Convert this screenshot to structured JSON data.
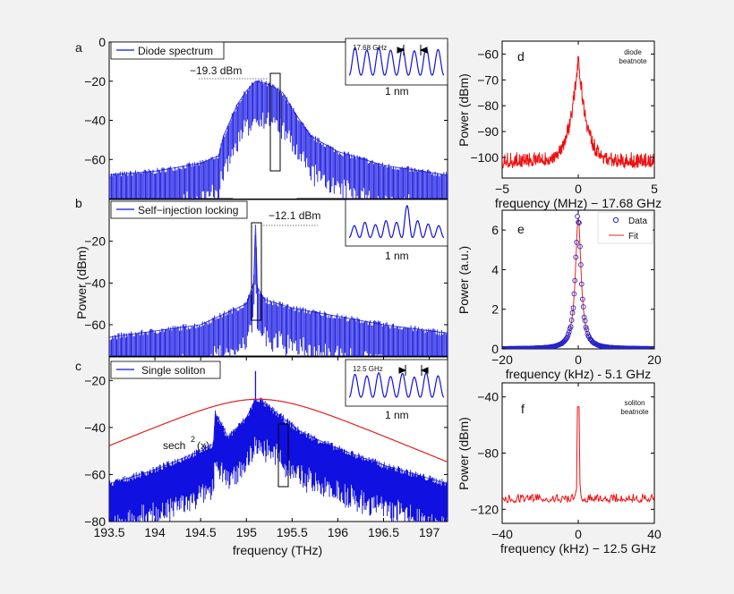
{
  "figure": {
    "shared_ylabel": "Power (dBm)",
    "shared_xlabel": "frequency (THz)"
  },
  "chart_data": [
    {
      "id": "a",
      "type": "line",
      "panel_label": "a",
      "legend": "Diode spectrum",
      "xlim": [
        193.5,
        197.2
      ],
      "ylim": [
        -80,
        0
      ],
      "yticks": [
        0,
        -20,
        -40,
        -60
      ],
      "annotation": "−19.3 dBm",
      "series": [
        {
          "name": "Diode spectrum",
          "color": "#1010e0",
          "envelope_x": [
            193.5,
            194.0,
            194.5,
            194.7,
            194.75,
            194.9,
            195.0,
            195.1,
            195.2,
            195.3,
            195.4,
            195.5,
            195.7,
            196.0,
            196.5,
            197.2
          ],
          "envelope_y": [
            -68,
            -66,
            -62,
            -58,
            -48,
            -32,
            -25,
            -20,
            -21,
            -23,
            -26,
            -34,
            -48,
            -56,
            -63,
            -68
          ],
          "floor_y": -80
        }
      ],
      "inset": {
        "label": "1 nm",
        "spacing_label": "17.68 GHz",
        "peaks": [
          0.9,
          0.82,
          0.9,
          0.82,
          0.88,
          0.8,
          0.9,
          0.84
        ],
        "marker_after": 5
      }
    },
    {
      "id": "b",
      "type": "line",
      "panel_label": "b",
      "legend": "Self−injection locking",
      "xlim": [
        193.5,
        197.2
      ],
      "ylim": [
        -75,
        0
      ],
      "yticks": [
        -20,
        -40,
        -60
      ],
      "annotation": "−12.1 dBm",
      "series": [
        {
          "name": "Self-injection locking",
          "color": "#1010e0",
          "envelope_x": [
            193.5,
            194.0,
            194.5,
            195.0,
            195.08,
            195.1,
            195.12,
            195.2,
            195.5,
            196.0,
            196.5,
            197.2
          ],
          "envelope_y": [
            -66,
            -63,
            -60,
            -50,
            -40,
            -12.1,
            -42,
            -48,
            -52,
            -56,
            -60,
            -64
          ],
          "floor_y": -75
        }
      ],
      "inset": {
        "label": "1 nm",
        "peaks": [
          0.35,
          0.45,
          0.38,
          0.5,
          0.45,
          0.95,
          0.5,
          0.4,
          0.35
        ]
      }
    },
    {
      "id": "c",
      "type": "line",
      "panel_label": "c",
      "legend": "Single soliton",
      "xlim": [
        193.5,
        197.2
      ],
      "ylim": [
        -80,
        -10
      ],
      "xticks": [
        193.5,
        194,
        194.5,
        195,
        195.5,
        196,
        196.5,
        197
      ],
      "yticks": [
        -20,
        -40,
        -60,
        -80
      ],
      "annotation_base": "sech",
      "annotation_sup": "2",
      "annotation_tail": "(x)",
      "series": [
        {
          "name": "Single soliton",
          "color": "#1010e0",
          "envelope_x": [
            193.5,
            194.0,
            194.5,
            194.64,
            194.66,
            194.8,
            195.0,
            195.1,
            195.15,
            195.2,
            195.4,
            195.6,
            196.0,
            196.5,
            197.2
          ],
          "envelope_y": [
            -64,
            -58,
            -50,
            -47,
            -34,
            -44,
            -36,
            -28,
            -28,
            -30,
            -36,
            -42,
            -49,
            -56,
            -64
          ],
          "spike_x": 195.1,
          "spike_y": -16
        },
        {
          "name": "sech^2 fit",
          "color": "#e02020",
          "center": 195.13,
          "peak": -28,
          "width": 0.55,
          "floor_db": -120
        }
      ],
      "inset": {
        "label": "1 nm",
        "spacing_label": "12.5 GHz",
        "peaks": [
          0.75,
          0.7,
          0.8,
          0.68,
          0.78,
          0.66,
          0.8,
          0.7
        ],
        "marker_after": 5
      }
    },
    {
      "id": "d",
      "type": "line",
      "panel_label": "d",
      "note_line1": "diode",
      "note_line2": "beatnote",
      "xlabel": "frequency (MHz) − 17.68 GHz",
      "ylabel": "Power (dBm)",
      "xlim": [
        -5,
        5
      ],
      "ylim": [
        -108,
        -55
      ],
      "xticks": [
        -5,
        0,
        5
      ],
      "yticks": [
        -60,
        -70,
        -80,
        -90,
        -100
      ],
      "series": [
        {
          "name": "diode beatnote",
          "color": "#ee1010",
          "peak_x": 0,
          "peak_y": -61,
          "noise_floor": -103
        }
      ]
    },
    {
      "id": "e",
      "type": "scatter",
      "panel_label": "e",
      "xlabel": "frequency (kHz) - 5.1 GHz",
      "ylabel": "Power (a.u.)",
      "xlim": [
        -20,
        20
      ],
      "ylim": [
        0,
        7
      ],
      "xticks": [
        -20,
        0,
        20
      ],
      "yticks": [
        0,
        2,
        4,
        6
      ],
      "legend": [
        "Data",
        "Fit"
      ],
      "series": [
        {
          "name": "Data",
          "color": "#2222cc",
          "marker": "circle",
          "center": 0,
          "amplitude": 6.7,
          "hwhm": 0.9
        },
        {
          "name": "Fit",
          "color": "#ee2222",
          "center": 0,
          "amplitude": 6.6,
          "hwhm": 0.9
        }
      ]
    },
    {
      "id": "f",
      "type": "line",
      "panel_label": "f",
      "note_line1": "soliton",
      "note_line2": "beatnote",
      "xlabel": "frequency (kHz)  − 12.5 GHz",
      "ylabel": "Power (dBm)",
      "xlim": [
        -40,
        40
      ],
      "ylim": [
        -130,
        -30
      ],
      "xticks": [
        -40,
        0,
        40
      ],
      "yticks": [
        -40,
        -80,
        -120
      ],
      "series": [
        {
          "name": "soliton beatnote",
          "color": "#ee1010",
          "peak_x": 0,
          "peak_y": -47,
          "noise_floor": -114
        }
      ]
    }
  ]
}
